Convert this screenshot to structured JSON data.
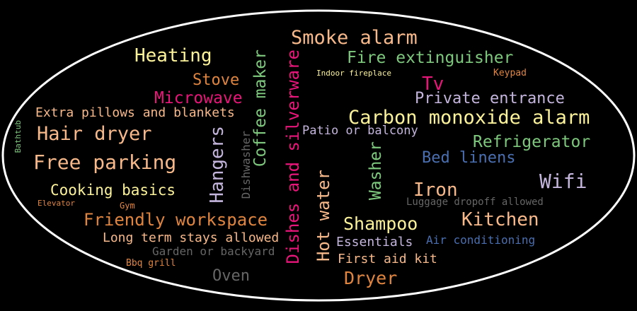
{
  "words": [
    {
      "id": "smoke-alarm",
      "text": "Smoke alarm",
      "color": "#f7b88a"
    },
    {
      "id": "heating",
      "text": "Heating",
      "color": "#fbf29a"
    },
    {
      "id": "fire-extinguisher",
      "text": "Fire extinguisher",
      "color": "#7ec87e"
    },
    {
      "id": "indoor-fireplace",
      "text": "Indoor fireplace",
      "color": "#fbf29a"
    },
    {
      "id": "keypad",
      "text": "Keypad",
      "color": "#e0853f"
    },
    {
      "id": "stove",
      "text": "Stove",
      "color": "#e0853f"
    },
    {
      "id": "tv",
      "text": "Tv",
      "color": "#e8157a"
    },
    {
      "id": "microwave",
      "text": "Microwave",
      "color": "#e8157a"
    },
    {
      "id": "coffee-maker",
      "text": "Coffee maker",
      "color": "#7ec87e"
    },
    {
      "id": "dishes-and-silverware",
      "text": "Dishes and silverware",
      "color": "#e8157a"
    },
    {
      "id": "private-entrance",
      "text": "Private entrance",
      "color": "#c4b5dd"
    },
    {
      "id": "extra-pillows",
      "text": "Extra pillows and blankets",
      "color": "#f7b88a"
    },
    {
      "id": "carbon-monoxide-alarm",
      "text": "Carbon monoxide alarm",
      "color": "#fbf29a"
    },
    {
      "id": "bathtub",
      "text": "Bathtub",
      "color": "#7ec87e"
    },
    {
      "id": "hair-dryer",
      "text": "Hair dryer",
      "color": "#f7b88a"
    },
    {
      "id": "hangers",
      "text": "Hangers",
      "color": "#c4b5dd"
    },
    {
      "id": "patio-or-balcony",
      "text": "Patio or balcony",
      "color": "#c4b5dd"
    },
    {
      "id": "dishwasher",
      "text": "Dishwasher",
      "color": "#666666"
    },
    {
      "id": "refrigerator",
      "text": "Refrigerator",
      "color": "#7ec87e"
    },
    {
      "id": "free-parking",
      "text": "Free parking",
      "color": "#f7b88a"
    },
    {
      "id": "washer",
      "text": "Washer",
      "color": "#7ec87e"
    },
    {
      "id": "bed-linens",
      "text": "Bed linens",
      "color": "#4a6fb0"
    },
    {
      "id": "hot-water",
      "text": "Hot water",
      "color": "#f7b88a"
    },
    {
      "id": "wifi",
      "text": "Wifi",
      "color": "#c4b5dd"
    },
    {
      "id": "cooking-basics",
      "text": "Cooking basics",
      "color": "#fbf29a"
    },
    {
      "id": "iron",
      "text": "Iron",
      "color": "#f7b88a"
    },
    {
      "id": "elevator",
      "text": "Elevator",
      "color": "#e0853f"
    },
    {
      "id": "gym",
      "text": "Gym",
      "color": "#e0853f"
    },
    {
      "id": "luggage-dropoff",
      "text": "Luggage dropoff allowed",
      "color": "#666666"
    },
    {
      "id": "friendly-workspace",
      "text": "Friendly workspace",
      "color": "#e0853f"
    },
    {
      "id": "kitchen",
      "text": "Kitchen",
      "color": "#f7b88a"
    },
    {
      "id": "shampoo",
      "text": "Shampoo",
      "color": "#fbf29a"
    },
    {
      "id": "long-term-stays",
      "text": "Long term stays allowed",
      "color": "#f7b88a"
    },
    {
      "id": "essentials",
      "text": "Essentials",
      "color": "#c4b5dd"
    },
    {
      "id": "air-conditioning",
      "text": "Air conditioning",
      "color": "#4a6fb0"
    },
    {
      "id": "garden-or-backyard",
      "text": "Garden or backyard",
      "color": "#666666"
    },
    {
      "id": "bbq-grill",
      "text": "Bbq grill",
      "color": "#e0853f"
    },
    {
      "id": "first-aid-kit",
      "text": "First aid kit",
      "color": "#f7b88a"
    },
    {
      "id": "oven",
      "text": "Oven",
      "color": "#666666"
    },
    {
      "id": "dryer",
      "text": "Dryer",
      "color": "#e0853f"
    }
  ]
}
